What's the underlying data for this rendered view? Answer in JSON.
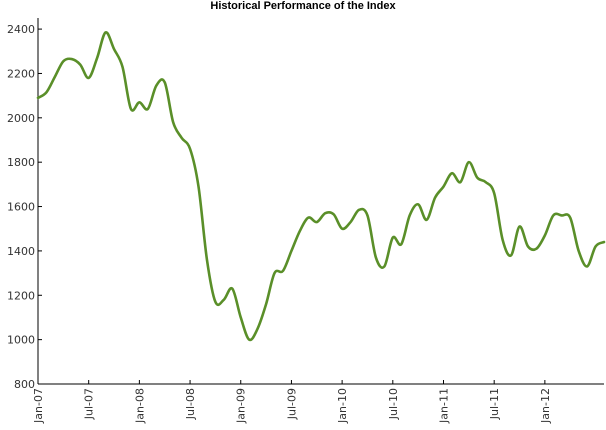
{
  "chart_data": {
    "type": "line",
    "title": "Historical Performance of the Index",
    "xlabel": "",
    "ylabel": "",
    "ylim": [
      800,
      2450
    ],
    "xlim": [
      "2007-01",
      "2012-08"
    ],
    "y_ticks": [
      800,
      1000,
      1200,
      1400,
      1600,
      1800,
      2000,
      2200,
      2400
    ],
    "y_tick_labels": [
      "800",
      "1000",
      "1200",
      "1400",
      "1600",
      "1800",
      "2000",
      "2200",
      "2400"
    ],
    "x_ticks": [
      "2007-01",
      "2007-07",
      "2008-01",
      "2008-07",
      "2009-01",
      "2009-07",
      "2010-01",
      "2010-07",
      "2011-01",
      "2011-07",
      "2012-01"
    ],
    "x_tick_labels": [
      "Jan-07",
      "Jul-07",
      "Jan-08",
      "Jul-08",
      "Jan-09",
      "Jul-09",
      "Jan-10",
      "Jul-10",
      "Jan-11",
      "Jul-11",
      "Jan-12"
    ],
    "grid": false,
    "series": [
      {
        "color": "#5a8f29",
        "x": [
          "2007-01",
          "2007-02",
          "2007-03",
          "2007-04",
          "2007-05",
          "2007-06",
          "2007-07",
          "2007-08",
          "2007-09",
          "2007-10",
          "2007-11",
          "2007-12",
          "2008-01",
          "2008-02",
          "2008-03",
          "2008-04",
          "2008-05",
          "2008-06",
          "2008-07",
          "2008-08",
          "2008-09",
          "2008-10",
          "2008-11",
          "2008-12",
          "2009-01",
          "2009-02",
          "2009-03",
          "2009-04",
          "2009-05",
          "2009-06",
          "2009-07",
          "2009-08",
          "2009-09",
          "2009-10",
          "2009-11",
          "2009-12",
          "2010-01",
          "2010-02",
          "2010-03",
          "2010-04",
          "2010-05",
          "2010-06",
          "2010-07",
          "2010-08",
          "2010-09",
          "2010-10",
          "2010-11",
          "2010-12",
          "2011-01",
          "2011-02",
          "2011-03",
          "2011-04",
          "2011-05",
          "2011-06",
          "2011-07",
          "2011-08",
          "2011-09",
          "2011-10",
          "2011-11",
          "2011-12",
          "2012-01",
          "2012-02",
          "2012-03",
          "2012-04",
          "2012-05",
          "2012-06",
          "2012-07",
          "2012-08"
        ],
        "values": [
          2090,
          2115,
          2185,
          2255,
          2265,
          2240,
          2180,
          2270,
          2385,
          2310,
          2230,
          2040,
          2070,
          2040,
          2145,
          2160,
          1980,
          1910,
          1860,
          1690,
          1360,
          1170,
          1180,
          1230,
          1100,
          1000,
          1050,
          1160,
          1300,
          1310,
          1400,
          1490,
          1550,
          1530,
          1570,
          1565,
          1500,
          1530,
          1585,
          1560,
          1370,
          1330,
          1460,
          1430,
          1560,
          1610,
          1540,
          1640,
          1690,
          1750,
          1710,
          1800,
          1730,
          1710,
          1660,
          1450,
          1380,
          1510,
          1420,
          1410,
          1470,
          1560,
          1560,
          1550,
          1400,
          1330,
          1420,
          1440
        ]
      }
    ]
  }
}
